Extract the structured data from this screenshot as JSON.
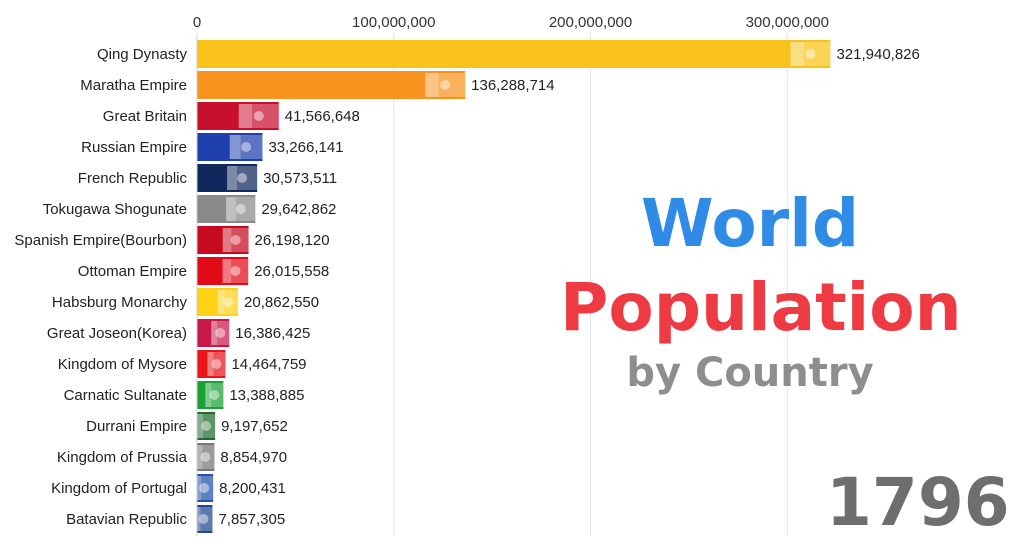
{
  "chart_data": {
    "type": "bar",
    "orientation": "horizontal",
    "xlim": [
      0,
      340000000
    ],
    "ticks": [
      0,
      100000000,
      200000000,
      300000000
    ],
    "tick_labels": [
      "0",
      "100,000,000",
      "200,000,000",
      "300,000,000"
    ],
    "grid": true,
    "categories": [
      "Qing Dynasty",
      "Maratha Empire",
      "Great Britain",
      "Russian Empire",
      "French Republic",
      "Tokugawa Shogunate",
      "Spanish Empire(Bourbon)",
      "Ottoman Empire",
      "Habsburg Monarchy",
      "Great Joseon(Korea)",
      "Kingdom of Mysore",
      "Carnatic Sultanate",
      "Durrani Empire",
      "Kingdom of Prussia",
      "Kingdom of Portugal",
      "Batavian Republic"
    ],
    "values": [
      321940826,
      136288714,
      41566648,
      33266141,
      30573511,
      29642862,
      26198120,
      26015558,
      20862550,
      16386425,
      14464759,
      13388885,
      9197652,
      8854970,
      8200431,
      7857305
    ],
    "value_labels": [
      "321,940,826",
      "136,288,714",
      "41,566,648",
      "33,266,141",
      "30,573,511",
      "29,642,862",
      "26,198,120",
      "26,015,558",
      "20,862,550",
      "16,386,425",
      "14,464,759",
      "13,388,885",
      "9,197,652",
      "8,854,970",
      "8,200,431",
      "7,857,305"
    ],
    "colors": [
      "#f9c21a",
      "#f7931e",
      "#c8102e",
      "#1f3fae",
      "#10285c",
      "#8a8a8a",
      "#c60b1e",
      "#e30a17",
      "#fcd116",
      "#c8184a",
      "#e8141a",
      "#1aa136",
      "#1f6b2e",
      "#777777",
      "#2351a8",
      "#21468b"
    ],
    "flag_icons": [
      "qing-dragon-flag-icon",
      "maratha-pennant-icon",
      "union-jack-icon",
      "russia-tricolor-icon",
      "france-tricolor-icon",
      "tokugawa-mon-icon",
      "bourbon-spain-flag-icon",
      "ottoman-crescent-icon",
      "habsburg-flag-icon",
      "joseon-flag-icon",
      "mysore-flag-icon",
      "carnatic-crescent-icon",
      "durrani-flag-icon",
      "prussia-eagle-icon",
      "portugal-flag-icon",
      "batavian-tricolor-icon"
    ]
  },
  "title": {
    "line1": "World",
    "line2": "Population",
    "line3": "by Country"
  },
  "year": "1796"
}
